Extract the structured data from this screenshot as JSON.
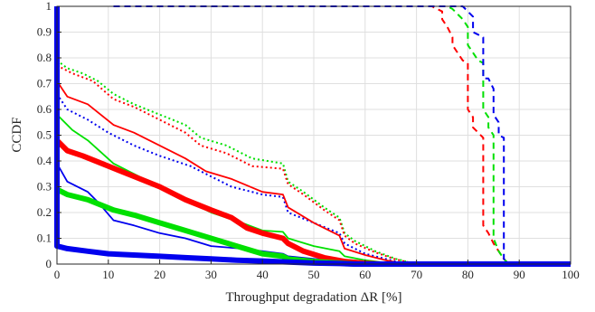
{
  "chart_data": {
    "type": "line",
    "title": "",
    "xlabel": "Throughput degradation  ΔR [%]",
    "ylabel": "CCDF",
    "xlim": [
      0,
      100
    ],
    "ylim": [
      0,
      1
    ],
    "grid": true,
    "legend": "none",
    "x_ticks": [
      0,
      10,
      20,
      30,
      40,
      50,
      60,
      70,
      80,
      90,
      100
    ],
    "y_ticks": [
      0,
      0.1,
      0.2,
      0.3,
      0.4,
      0.5,
      0.6,
      0.7,
      0.8,
      0.9,
      1
    ],
    "series": [
      {
        "color": "#ff0000",
        "style": "dashed",
        "weight": "thin",
        "points": [
          [
            11,
            1
          ],
          [
            73,
            1
          ],
          [
            75,
            0.98
          ],
          [
            75,
            0.95
          ],
          [
            76,
            0.92
          ],
          [
            77,
            0.88
          ],
          [
            77,
            0.85
          ],
          [
            78,
            0.82
          ],
          [
            79,
            0.79
          ],
          [
            80,
            0.78
          ],
          [
            80,
            0.6
          ],
          [
            81,
            0.57
          ],
          [
            81,
            0.53
          ],
          [
            82,
            0.51
          ],
          [
            83,
            0.49
          ],
          [
            83,
            0.15
          ],
          [
            84,
            0.12
          ],
          [
            85,
            0.08
          ],
          [
            86,
            0.05
          ],
          [
            87,
            0.02
          ],
          [
            88,
            0
          ],
          [
            100,
            0
          ]
        ]
      },
      {
        "color": "#00e000",
        "style": "dashed",
        "weight": "thin",
        "points": [
          [
            11,
            1
          ],
          [
            76,
            1
          ],
          [
            77,
            0.99
          ],
          [
            78,
            0.97
          ],
          [
            79,
            0.95
          ],
          [
            80,
            0.92
          ],
          [
            80,
            0.85
          ],
          [
            81,
            0.82
          ],
          [
            82,
            0.79
          ],
          [
            83,
            0.78
          ],
          [
            83,
            0.6
          ],
          [
            84,
            0.57
          ],
          [
            84,
            0.53
          ],
          [
            85,
            0.5
          ],
          [
            85,
            0.1
          ],
          [
            86,
            0.05
          ],
          [
            87,
            0.02
          ],
          [
            88,
            0
          ],
          [
            100,
            0
          ]
        ]
      },
      {
        "color": "#0000ee",
        "style": "dashed",
        "weight": "thin",
        "points": [
          [
            11,
            1
          ],
          [
            76,
            1
          ],
          [
            78,
            1
          ],
          [
            79,
            1
          ],
          [
            80,
            0.98
          ],
          [
            81,
            0.96
          ],
          [
            81,
            0.9
          ],
          [
            82,
            0.89
          ],
          [
            83,
            0.88
          ],
          [
            83,
            0.72
          ],
          [
            84,
            0.72
          ],
          [
            85,
            0.68
          ],
          [
            85,
            0.58
          ],
          [
            86,
            0.55
          ],
          [
            86,
            0.5
          ],
          [
            87,
            0.49
          ],
          [
            87,
            0.02
          ],
          [
            88,
            0
          ],
          [
            100,
            0
          ]
        ]
      },
      {
        "color": "#00e000",
        "style": "dotted",
        "weight": "thin",
        "points": [
          [
            0,
            0.79
          ],
          [
            2,
            0.76
          ],
          [
            5,
            0.74
          ],
          [
            8,
            0.71
          ],
          [
            11,
            0.66
          ],
          [
            15,
            0.62
          ],
          [
            20,
            0.58
          ],
          [
            25,
            0.54
          ],
          [
            28,
            0.49
          ],
          [
            33,
            0.46
          ],
          [
            38,
            0.41
          ],
          [
            44,
            0.39
          ],
          [
            45,
            0.32
          ],
          [
            48,
            0.28
          ],
          [
            52,
            0.22
          ],
          [
            55,
            0.18
          ],
          [
            56,
            0.12
          ],
          [
            58,
            0.09
          ],
          [
            62,
            0.05
          ],
          [
            66,
            0.02
          ],
          [
            70,
            0
          ],
          [
            100,
            0
          ]
        ]
      },
      {
        "color": "#ff0000",
        "style": "dotted",
        "weight": "thin",
        "points": [
          [
            0,
            0.77
          ],
          [
            3,
            0.74
          ],
          [
            7,
            0.71
          ],
          [
            11,
            0.64
          ],
          [
            15,
            0.61
          ],
          [
            20,
            0.56
          ],
          [
            25,
            0.51
          ],
          [
            28,
            0.46
          ],
          [
            33,
            0.43
          ],
          [
            38,
            0.38
          ],
          [
            44,
            0.37
          ],
          [
            45,
            0.31
          ],
          [
            48,
            0.27
          ],
          [
            52,
            0.21
          ],
          [
            55,
            0.17
          ],
          [
            56,
            0.11
          ],
          [
            58,
            0.08
          ],
          [
            62,
            0.045
          ],
          [
            66,
            0.018
          ],
          [
            70,
            0
          ],
          [
            100,
            0
          ]
        ]
      },
      {
        "color": "#0000ee",
        "style": "dotted",
        "weight": "thin",
        "points": [
          [
            0,
            0.66
          ],
          [
            2,
            0.6
          ],
          [
            6,
            0.56
          ],
          [
            10,
            0.51
          ],
          [
            15,
            0.46
          ],
          [
            20,
            0.42
          ],
          [
            26,
            0.38
          ],
          [
            30,
            0.34
          ],
          [
            34,
            0.3
          ],
          [
            40,
            0.27
          ],
          [
            44,
            0.26
          ],
          [
            45,
            0.2
          ],
          [
            50,
            0.16
          ],
          [
            55,
            0.12
          ],
          [
            56,
            0.08
          ],
          [
            60,
            0.04
          ],
          [
            64,
            0.02
          ],
          [
            68,
            0
          ],
          [
            100,
            0
          ]
        ]
      },
      {
        "color": "#ff0000",
        "style": "solid",
        "weight": "thin",
        "points": [
          [
            0,
            0.71
          ],
          [
            2,
            0.65
          ],
          [
            6,
            0.62
          ],
          [
            11,
            0.54
          ],
          [
            15,
            0.51
          ],
          [
            20,
            0.46
          ],
          [
            25,
            0.41
          ],
          [
            29,
            0.36
          ],
          [
            34,
            0.33
          ],
          [
            40,
            0.28
          ],
          [
            44,
            0.27
          ],
          [
            45,
            0.22
          ],
          [
            50,
            0.16
          ],
          [
            55,
            0.11
          ],
          [
            56,
            0.06
          ],
          [
            60,
            0.035
          ],
          [
            64,
            0.015
          ],
          [
            68,
            0
          ],
          [
            100,
            0
          ]
        ]
      },
      {
        "color": "#00e000",
        "style": "solid",
        "weight": "thin",
        "points": [
          [
            0,
            0.58
          ],
          [
            3,
            0.52
          ],
          [
            6,
            0.48
          ],
          [
            11,
            0.39
          ],
          [
            15,
            0.35
          ],
          [
            20,
            0.3
          ],
          [
            25,
            0.25
          ],
          [
            30,
            0.2
          ],
          [
            36,
            0.16
          ],
          [
            40,
            0.13
          ],
          [
            44,
            0.125
          ],
          [
            45,
            0.1
          ],
          [
            50,
            0.07
          ],
          [
            55,
            0.05
          ],
          [
            56,
            0.03
          ],
          [
            60,
            0.015
          ],
          [
            64,
            0.005
          ],
          [
            66,
            0
          ],
          [
            100,
            0
          ]
        ]
      },
      {
        "color": "#0000ee",
        "style": "solid",
        "weight": "thin",
        "points": [
          [
            0,
            0.39
          ],
          [
            2,
            0.32
          ],
          [
            6,
            0.28
          ],
          [
            8,
            0.24
          ],
          [
            11,
            0.17
          ],
          [
            15,
            0.15
          ],
          [
            20,
            0.12
          ],
          [
            25,
            0.1
          ],
          [
            30,
            0.07
          ],
          [
            36,
            0.06
          ],
          [
            40,
            0.05
          ],
          [
            44,
            0.04
          ],
          [
            45,
            0.03
          ],
          [
            50,
            0.02
          ],
          [
            55,
            0.01
          ],
          [
            60,
            0.005
          ],
          [
            64,
            0
          ],
          [
            100,
            0
          ]
        ]
      },
      {
        "color": "#ff0000",
        "style": "solid",
        "weight": "thick",
        "points": [
          [
            0,
            0.48
          ],
          [
            2,
            0.44
          ],
          [
            5,
            0.42
          ],
          [
            10,
            0.38
          ],
          [
            15,
            0.34
          ],
          [
            20,
            0.3
          ],
          [
            25,
            0.25
          ],
          [
            30,
            0.21
          ],
          [
            34,
            0.18
          ],
          [
            37,
            0.14
          ],
          [
            40,
            0.12
          ],
          [
            44,
            0.1
          ],
          [
            45,
            0.08
          ],
          [
            48,
            0.05
          ],
          [
            52,
            0.025
          ],
          [
            56,
            0.01
          ],
          [
            60,
            0.003
          ],
          [
            63,
            0
          ],
          [
            100,
            0
          ]
        ]
      },
      {
        "color": "#00e000",
        "style": "solid",
        "weight": "thick",
        "points": [
          [
            0,
            0.29
          ],
          [
            2,
            0.27
          ],
          [
            6,
            0.25
          ],
          [
            11,
            0.21
          ],
          [
            15,
            0.19
          ],
          [
            20,
            0.16
          ],
          [
            25,
            0.13
          ],
          [
            30,
            0.1
          ],
          [
            35,
            0.07
          ],
          [
            40,
            0.04
          ],
          [
            44,
            0.03
          ],
          [
            45,
            0.02
          ],
          [
            50,
            0.01
          ],
          [
            55,
            0.004
          ],
          [
            58,
            0
          ],
          [
            100,
            0
          ]
        ]
      },
      {
        "color": "#0000ee",
        "style": "solid",
        "weight": "thick",
        "points": [
          [
            0,
            1
          ],
          [
            0,
            0.07
          ],
          [
            2,
            0.06
          ],
          [
            6,
            0.05
          ],
          [
            10,
            0.04
          ],
          [
            15,
            0.035
          ],
          [
            20,
            0.03
          ],
          [
            25,
            0.025
          ],
          [
            30,
            0.02
          ],
          [
            35,
            0.015
          ],
          [
            40,
            0.012
          ],
          [
            45,
            0.008
          ],
          [
            50,
            0.004
          ],
          [
            55,
            0.002
          ],
          [
            58,
            0
          ],
          [
            100,
            0
          ]
        ]
      }
    ]
  }
}
